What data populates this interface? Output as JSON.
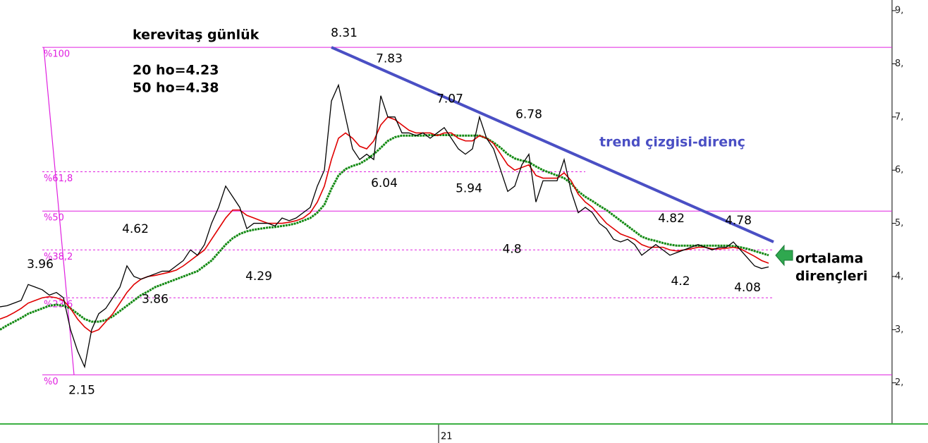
{
  "chart_data": {
    "type": "line",
    "title": "kerevitaş günlük",
    "subtitle_lines": [
      "20 ho=4.23",
      "50 ho=4.38"
    ],
    "x": [
      0,
      1,
      2,
      3,
      4,
      5,
      6,
      7,
      8,
      9,
      10,
      11,
      12,
      13,
      14,
      15,
      16,
      17,
      18,
      19,
      20,
      21,
      22,
      23,
      24,
      25,
      26,
      27,
      28,
      29,
      30,
      31,
      32,
      33,
      34,
      35,
      36,
      37,
      38,
      39,
      40,
      41,
      42,
      43,
      44,
      45,
      46,
      47,
      48,
      49,
      50,
      51,
      52,
      53,
      54,
      55,
      56,
      57,
      58,
      59,
      60,
      61,
      62,
      63,
      64,
      65,
      66,
      67,
      68,
      69,
      70,
      71,
      72,
      73,
      74,
      75,
      76,
      77,
      78,
      79,
      80,
      81,
      82,
      83,
      84,
      85,
      86,
      87,
      88,
      89,
      90,
      91,
      92,
      93,
      94,
      95,
      96,
      97,
      98,
      99,
      100,
      101,
      102,
      103,
      104,
      105,
      106,
      107,
      108,
      109
    ],
    "series": [
      {
        "color": "#000000",
        "values": [
          3.43,
          3.45,
          3.5,
          3.55,
          3.85,
          3.8,
          3.75,
          3.65,
          3.7,
          3.6,
          3.0,
          2.6,
          2.3,
          3.0,
          3.3,
          3.4,
          3.6,
          3.8,
          4.2,
          4.0,
          3.95,
          4.0,
          4.05,
          4.1,
          4.1,
          4.2,
          4.3,
          4.5,
          4.4,
          4.6,
          5.0,
          5.3,
          5.7,
          5.5,
          5.3,
          4.9,
          5.0,
          5.0,
          5.0,
          4.95,
          5.1,
          5.05,
          5.1,
          5.2,
          5.3,
          5.7,
          6.0,
          7.3,
          7.6,
          7.0,
          6.4,
          6.2,
          6.3,
          6.2,
          7.4,
          7.0,
          7.0,
          6.7,
          6.7,
          6.65,
          6.7,
          6.6,
          6.7,
          6.8,
          6.6,
          6.4,
          6.3,
          6.4,
          7.0,
          6.6,
          6.4,
          6.0,
          5.6,
          5.7,
          6.1,
          6.3,
          5.4,
          5.8,
          5.8,
          5.8,
          6.2,
          5.6,
          5.2,
          5.3,
          5.2,
          5.0,
          4.9,
          4.7,
          4.65,
          4.7,
          4.6,
          4.4,
          4.5,
          4.6,
          4.5,
          4.4,
          4.45,
          4.5,
          4.55,
          4.6,
          4.55,
          4.5,
          4.55,
          4.55,
          4.65,
          4.5,
          4.35,
          4.2,
          4.15,
          4.18
        ]
      },
      {
        "color": "#e00000",
        "values": [
          3.2,
          3.25,
          3.32,
          3.4,
          3.5,
          3.55,
          3.6,
          3.62,
          3.6,
          3.55,
          3.4,
          3.2,
          3.05,
          2.95,
          3.0,
          3.15,
          3.3,
          3.5,
          3.7,
          3.85,
          3.95,
          4.0,
          4.02,
          4.05,
          4.08,
          4.12,
          4.2,
          4.3,
          4.4,
          4.5,
          4.7,
          4.9,
          5.1,
          5.25,
          5.25,
          5.15,
          5.1,
          5.05,
          5.0,
          5.0,
          5.0,
          5.02,
          5.05,
          5.1,
          5.2,
          5.4,
          5.7,
          6.2,
          6.6,
          6.7,
          6.6,
          6.45,
          6.4,
          6.55,
          6.85,
          7.0,
          6.95,
          6.85,
          6.75,
          6.7,
          6.7,
          6.7,
          6.65,
          6.7,
          6.7,
          6.6,
          6.55,
          6.55,
          6.65,
          6.6,
          6.5,
          6.3,
          6.1,
          6.0,
          6.05,
          6.1,
          5.9,
          5.85,
          5.85,
          5.85,
          5.95,
          5.8,
          5.55,
          5.4,
          5.3,
          5.15,
          5.0,
          4.9,
          4.8,
          4.75,
          4.7,
          4.6,
          4.55,
          4.55,
          4.55,
          4.5,
          4.48,
          4.5,
          4.52,
          4.55,
          4.55,
          4.52,
          4.52,
          4.53,
          4.55,
          4.52,
          4.45,
          4.38,
          4.3,
          4.25
        ]
      },
      {
        "color": "#138a13",
        "values": [
          3.0,
          3.08,
          3.15,
          3.22,
          3.3,
          3.35,
          3.4,
          3.45,
          3.47,
          3.45,
          3.4,
          3.3,
          3.2,
          3.15,
          3.15,
          3.18,
          3.25,
          3.35,
          3.45,
          3.55,
          3.65,
          3.72,
          3.8,
          3.85,
          3.9,
          3.95,
          4.0,
          4.05,
          4.1,
          4.2,
          4.3,
          4.45,
          4.6,
          4.72,
          4.8,
          4.85,
          4.88,
          4.9,
          4.92,
          4.93,
          4.95,
          4.97,
          5.0,
          5.05,
          5.1,
          5.2,
          5.35,
          5.65,
          5.9,
          6.02,
          6.08,
          6.12,
          6.2,
          6.3,
          6.42,
          6.55,
          6.62,
          6.65,
          6.65,
          6.65,
          6.65,
          6.66,
          6.66,
          6.66,
          6.66,
          6.65,
          6.65,
          6.65,
          6.65,
          6.6,
          6.52,
          6.42,
          6.3,
          6.22,
          6.18,
          6.15,
          6.07,
          6.0,
          5.95,
          5.9,
          5.85,
          5.75,
          5.6,
          5.5,
          5.42,
          5.33,
          5.25,
          5.15,
          5.05,
          4.95,
          4.85,
          4.75,
          4.7,
          4.67,
          4.63,
          4.6,
          4.58,
          4.58,
          4.58,
          4.58,
          4.58,
          4.58,
          4.58,
          4.58,
          4.57,
          4.55,
          4.52,
          4.48,
          4.44,
          4.4
        ]
      }
    ],
    "xlim": [
      0,
      126.5
    ],
    "ylim": [
      1.24,
      9.2
    ],
    "xticks": [
      {
        "value": 62.2,
        "label": "21"
      }
    ],
    "yticks": [
      {
        "value": 2,
        "label": "2,"
      },
      {
        "value": 3,
        "label": "3,"
      },
      {
        "value": 4,
        "label": "4,"
      },
      {
        "value": 5,
        "label": "5,"
      },
      {
        "value": 6,
        "label": "6,"
      },
      {
        "value": 7,
        "label": "7,"
      },
      {
        "value": 8,
        "label": "8,"
      },
      {
        "value": 9,
        "label": "9,"
      }
    ],
    "fib_levels": [
      {
        "value": 8.31,
        "label": "%100",
        "dashed": false
      },
      {
        "value": 5.97,
        "label": "%61,8",
        "dashed": true
      },
      {
        "value": 5.23,
        "label": "%50",
        "dashed": false
      },
      {
        "value": 4.5,
        "label": "%38,2",
        "dashed": true
      },
      {
        "value": 3.6,
        "label": "%23,6",
        "dashed": true
      },
      {
        "value": 2.15,
        "label": "%0",
        "dashed": false
      }
    ],
    "fib_color": "#e020e0",
    "fib_anchor": {
      "x": [
        6.2,
        10.5
      ],
      "y": [
        8.31,
        2.15
      ]
    },
    "trend_line": {
      "x": [
        47,
        109.7
      ],
      "y": [
        8.31,
        4.65
      ],
      "color": "#4a4fc4",
      "label": "trend çizgisi-direnç"
    },
    "ma_note": [
      "ortalama",
      "dirençleri"
    ],
    "annotations": [
      {
        "value": 8.31,
        "x": 48.8,
        "side": "above"
      },
      {
        "value": 7.83,
        "x": 55.2,
        "side": "above"
      },
      {
        "value": 7.07,
        "x": 63.8,
        "side": "above"
      },
      {
        "value": 6.78,
        "x": 75,
        "side": "above"
      },
      {
        "value": 6.04,
        "x": 54.5,
        "side": "below"
      },
      {
        "value": 5.94,
        "x": 66.5,
        "side": "below"
      },
      {
        "value": 4.8,
        "x": 72.6,
        "side": "below"
      },
      {
        "value": 4.82,
        "x": 95.2,
        "side": "above"
      },
      {
        "value": 4.78,
        "x": 104.7,
        "side": "above"
      },
      {
        "value": 4.2,
        "x": 96.5,
        "side": "below"
      },
      {
        "value": 4.08,
        "x": 106,
        "side": "below"
      },
      {
        "value": 4.29,
        "x": 36.7,
        "side": "below"
      },
      {
        "value": 4.62,
        "x": 19.2,
        "side": "above"
      },
      {
        "value": 3.86,
        "x": 22,
        "side": "below"
      },
      {
        "value": 3.96,
        "x": 5.7,
        "side": "above"
      },
      {
        "value": 2.15,
        "x": 11.6,
        "side": "below"
      }
    ]
  }
}
